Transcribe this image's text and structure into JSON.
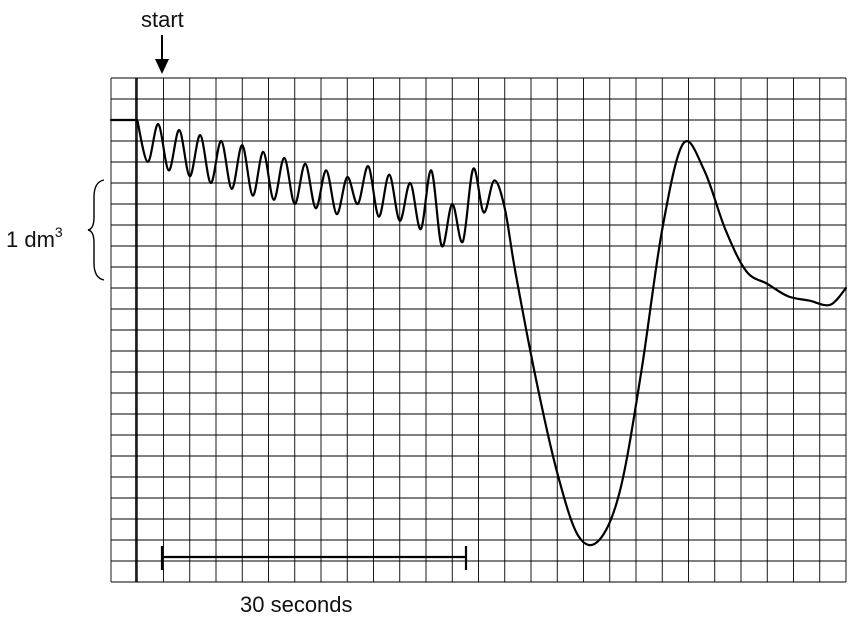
{
  "chart_data": {
    "type": "line",
    "title": "",
    "xlabel": "",
    "ylabel": "",
    "grid": true,
    "units": {
      "x": "seconds",
      "y": "dm3"
    },
    "xlim": [
      -2.5,
      67.5
    ],
    "ylim": [
      -4.5,
      1.5
    ],
    "start_label": "start",
    "volume_scale": {
      "label_main": "1 dm",
      "label_sup": "3",
      "value": 1
    },
    "time_scale": {
      "label": "30 seconds",
      "from": 0,
      "to": 30
    },
    "series": [
      {
        "x": [
          0,
          1,
          2,
          3,
          4,
          5,
          6,
          7,
          8,
          9,
          10,
          11,
          12,
          13,
          14,
          15,
          16,
          17,
          18,
          19,
          20,
          21,
          22,
          23,
          24,
          25,
          26,
          27,
          28,
          29,
          30,
          31,
          32,
          33,
          34,
          35,
          36,
          38,
          40,
          42,
          44,
          46,
          48,
          50,
          52,
          54,
          56,
          58,
          60,
          62,
          64,
          66,
          67.5
        ],
        "y": [
          1.0,
          0.5,
          0.95,
          0.4,
          0.88,
          0.33,
          0.82,
          0.25,
          0.75,
          0.18,
          0.7,
          0.1,
          0.62,
          0.05,
          0.55,
          0.0,
          0.48,
          -0.05,
          0.4,
          -0.12,
          0.32,
          0.0,
          0.45,
          -0.15,
          0.35,
          -0.2,
          0.25,
          -0.3,
          0.4,
          -0.5,
          0.0,
          -0.45,
          0.42,
          -0.1,
          0.28,
          -0.05,
          -0.8,
          -2.1,
          -3.2,
          -3.95,
          -4.0,
          -3.4,
          -2.0,
          -0.3,
          0.72,
          0.4,
          -0.3,
          -0.8,
          -0.95,
          -1.1,
          -1.15,
          -1.2,
          -1.0
        ]
      }
    ]
  }
}
